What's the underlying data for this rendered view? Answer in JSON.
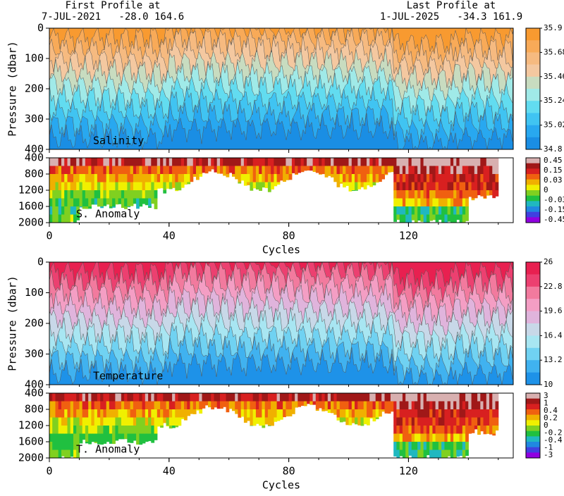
{
  "header": {
    "first_label": "First Profile at",
    "first_info": "7-JUL-2021   -28.0 164.6",
    "last_label": "Last Profile at",
    "last_info": "1-JUL-2025   -34.3 161.9"
  },
  "chart_data": [
    {
      "type": "section",
      "label": "Salinity",
      "ylabel": "Pressure (dbar)",
      "ylim": [
        0,
        400
      ],
      "yticks": [
        0,
        100,
        200,
        300,
        400
      ],
      "xlim": [
        0,
        155
      ],
      "colorbar_ticks": [
        34.8,
        35.02,
        35.24,
        35.46,
        35.68,
        35.9
      ],
      "colors": [
        "#f89a30",
        "#f8aa58",
        "#f6ba80",
        "#f4c8a0",
        "#c8dcc0",
        "#a0eae8",
        "#62dcf0",
        "#40c4f2",
        "#28a8f0",
        "#1a8ee4"
      ]
    },
    {
      "type": "anomaly",
      "label": "S. Anomaly",
      "ylim": [
        400,
        2000
      ],
      "yticks": [
        400,
        800,
        1200,
        1600,
        2000
      ],
      "xlim": [
        0,
        155
      ],
      "xticks": [
        0,
        40,
        80,
        120
      ],
      "xlabel": "Cycles",
      "colorbar_labels": [
        0.45,
        0.15,
        0.03,
        0,
        -0.03,
        -0.15,
        -0.45
      ],
      "colors": [
        "#d8b0b0",
        "#a01818",
        "#d82020",
        "#f06010",
        "#f0b000",
        "#f0f000",
        "#80d020",
        "#20c040",
        "#20b8c0",
        "#2088e0",
        "#4040e0",
        "#9000e0"
      ]
    },
    {
      "type": "section",
      "label": "Temperature",
      "ylabel": "Pressure (dbar)",
      "ylim": [
        0,
        400
      ],
      "yticks": [
        0,
        100,
        200,
        300,
        400
      ],
      "xlim": [
        0,
        155
      ],
      "colorbar_ticks": [
        10,
        13.2,
        16.4,
        19.6,
        22.8,
        26
      ],
      "colors": [
        "#e82050",
        "#ec4070",
        "#f27a9e",
        "#f49ec4",
        "#e0b4dc",
        "#c8d8e8",
        "#a8e6f2",
        "#70d2f2",
        "#40b2f0",
        "#1e92e8"
      ]
    },
    {
      "type": "anomaly",
      "label": "T. Anomaly",
      "ylim": [
        400,
        2000
      ],
      "yticks": [
        400,
        800,
        1200,
        1600,
        2000
      ],
      "xlim": [
        0,
        155
      ],
      "xticks": [
        0,
        40,
        80,
        120
      ],
      "xlabel": "Cycles",
      "colorbar_labels": [
        3,
        1,
        0.4,
        0.2,
        0,
        -0.2,
        -0.4,
        -1,
        -3
      ],
      "colors": [
        "#d8b0b0",
        "#a01818",
        "#d82020",
        "#f06010",
        "#f0b000",
        "#f0f000",
        "#80d020",
        "#20c040",
        "#20b8c0",
        "#2088e0",
        "#4040e0",
        "#9000e0"
      ]
    }
  ]
}
